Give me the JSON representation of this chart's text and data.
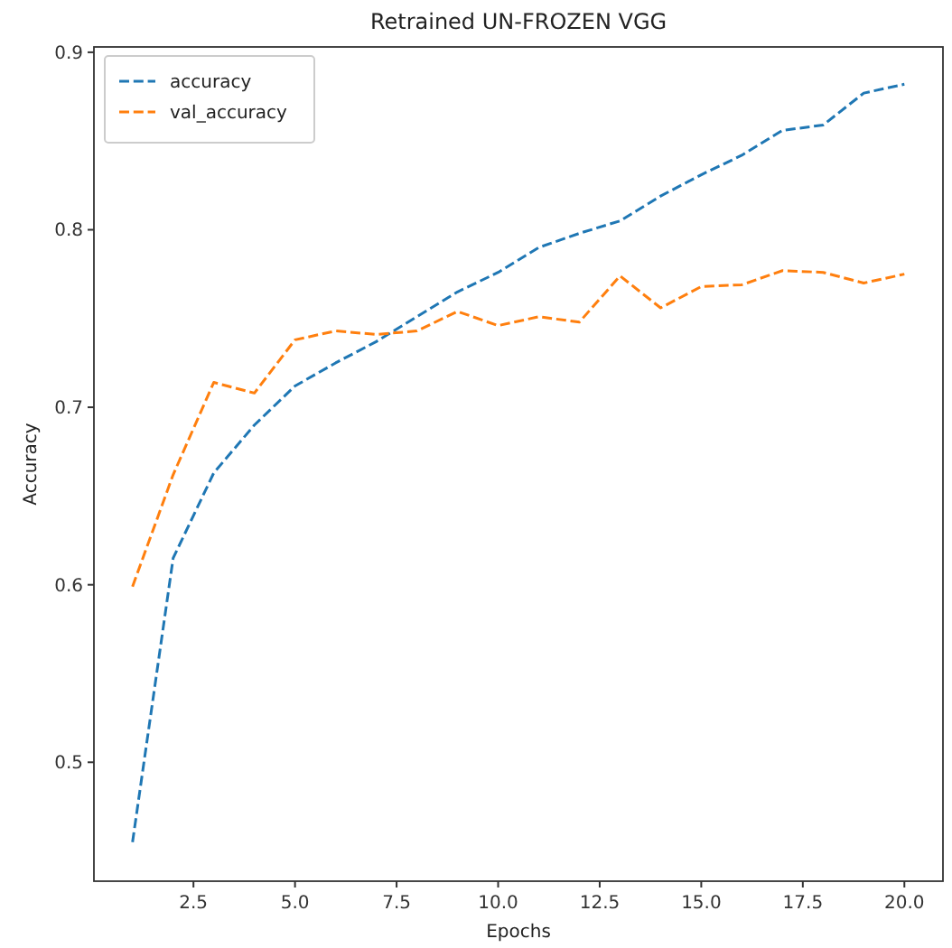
{
  "chart_data": {
    "type": "line",
    "title": "Retrained UN-FROZEN VGG",
    "xlabel": "Epochs",
    "ylabel": "Accuracy",
    "x": [
      1,
      2,
      3,
      4,
      5,
      6,
      7,
      8,
      9,
      10,
      11,
      12,
      13,
      14,
      15,
      16,
      17,
      18,
      19,
      20
    ],
    "series": [
      {
        "name": "accuracy",
        "color": "#1f77b4",
        "values": [
          0.455,
          0.615,
          0.663,
          0.69,
          0.712,
          0.725,
          0.737,
          0.751,
          0.765,
          0.776,
          0.79,
          0.798,
          0.805,
          0.819,
          0.831,
          0.842,
          0.856,
          0.859,
          0.877,
          0.882
        ]
      },
      {
        "name": "val_accuracy",
        "color": "#ff7f0e",
        "values": [
          0.599,
          0.662,
          0.714,
          0.708,
          0.738,
          0.743,
          0.741,
          0.743,
          0.754,
          0.746,
          0.751,
          0.748,
          0.774,
          0.756,
          0.768,
          0.769,
          0.777,
          0.776,
          0.77,
          0.775
        ]
      }
    ],
    "xlim": [
      0.05,
      20.95
    ],
    "xticks": [
      {
        "value": 2.5,
        "label": "2.5"
      },
      {
        "value": 5,
        "label": "5.0"
      },
      {
        "value": 7.5,
        "label": "7.5"
      },
      {
        "value": 10,
        "label": "10.0"
      },
      {
        "value": 12.5,
        "label": "12.5"
      },
      {
        "value": 15,
        "label": "15.0"
      },
      {
        "value": 17.5,
        "label": "17.5"
      },
      {
        "value": 20,
        "label": "20.0"
      }
    ],
    "ylim": [
      0.433,
      0.903
    ],
    "yticks": [
      0.5,
      0.6,
      0.7,
      0.8,
      0.9
    ],
    "legend": "top left",
    "line_style": "dashed",
    "marker": "none",
    "grid": false
  }
}
